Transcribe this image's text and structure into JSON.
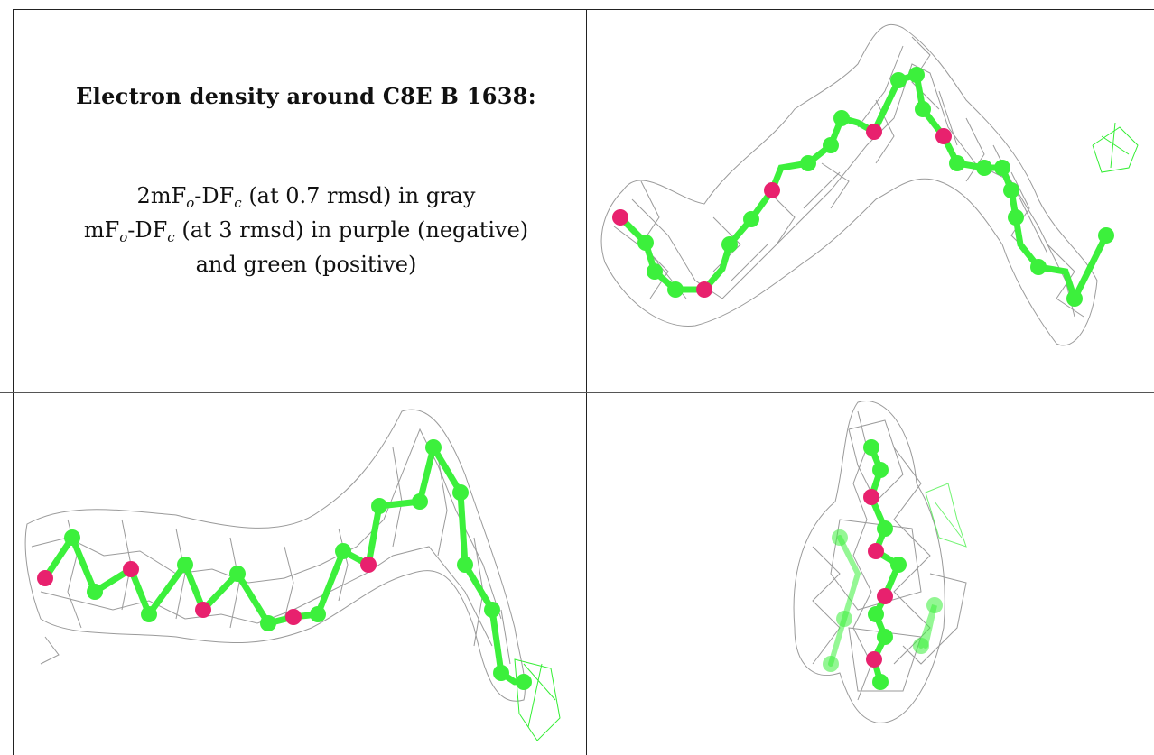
{
  "caption": {
    "title": "Electron density around C8E B 1638:",
    "line1": {
      "pre": "2mF",
      "sub1": "o",
      "mid": "-DF",
      "sub2": "c",
      "post": " (at 0.7 rmsd) in gray"
    },
    "line2": {
      "pre": "mF",
      "sub1": "o",
      "mid": "-DF",
      "sub2": "c",
      "post": " (at 3 rmsd) in purple (negative)"
    },
    "line3": "and green (positive)"
  },
  "colors": {
    "mesh_gray": "#9a9a9a",
    "carbon_green": "#3cf03c",
    "oxygen_pink": "#e8216e",
    "positive_density": "#33ee33",
    "border": "#222222"
  },
  "panels": [
    {
      "name": "view-top-right",
      "description_icon": "molecule-density-view-1"
    },
    {
      "name": "view-bottom-left",
      "description_icon": "molecule-density-view-2"
    },
    {
      "name": "view-bottom-right",
      "description_icon": "molecule-density-view-3"
    }
  ]
}
